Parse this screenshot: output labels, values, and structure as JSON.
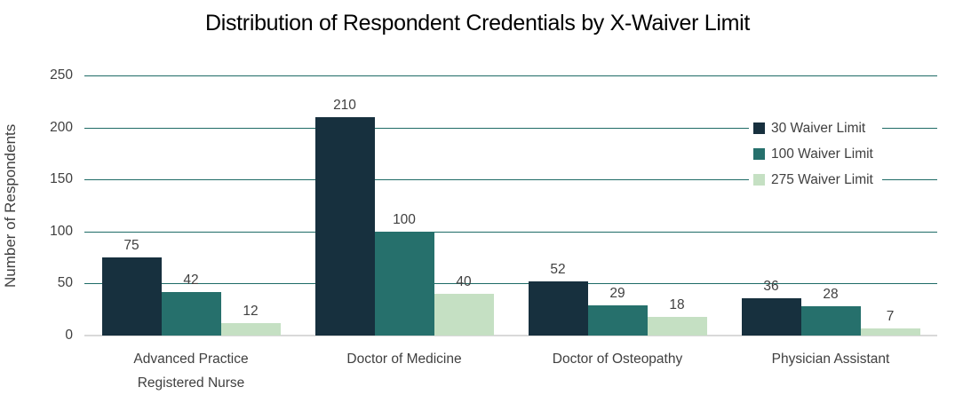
{
  "title": "Distribution of Respondent Credentials by X-Waiver Limit",
  "chart_data": {
    "type": "bar",
    "title": "Distribution of Respondent Credentials by X-Waiver Limit",
    "xlabel": "",
    "ylabel": "Number of Respondents",
    "categories": [
      "Advanced Practice Registered Nurse",
      "Doctor of Medicine",
      "Doctor of Osteopathy",
      "Physician Assistant"
    ],
    "series": [
      {
        "name": "30 Waiver Limit",
        "color": "#17303E",
        "values": [
          75,
          210,
          52,
          36
        ]
      },
      {
        "name": "100 Waiver Limit",
        "color": "#26706C",
        "values": [
          42,
          100,
          29,
          28
        ]
      },
      {
        "name": "275 Waiver Limit",
        "color": "#C5E0C3",
        "values": [
          12,
          40,
          18,
          7
        ]
      }
    ],
    "ylim": [
      0,
      250
    ],
    "yticks": [
      0,
      50,
      100,
      150,
      200,
      250
    ],
    "grid": true,
    "legend_position": "right",
    "colors": {
      "gridline": "#1E6B66",
      "baseline": "#D9D9D9",
      "axis_text": "#404040",
      "title_text": "#000000",
      "background": "#FFFFFF"
    }
  }
}
